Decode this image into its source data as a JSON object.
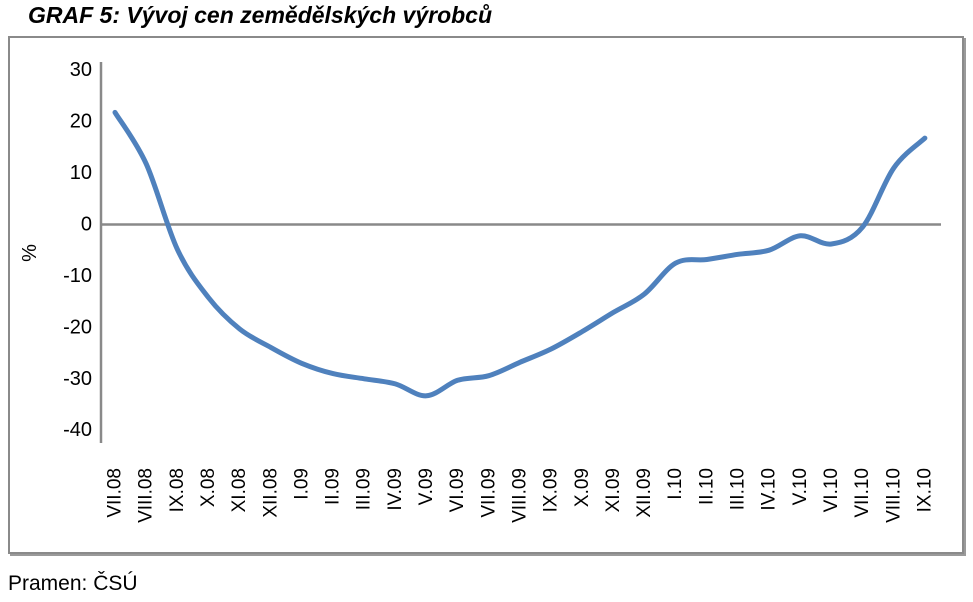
{
  "page": {
    "title": "GRAF 5: Vývoj cen zemědělských výrobců",
    "source": "Pramen: ČSÚ"
  },
  "chart_data": {
    "type": "line",
    "title": "GRAF 5: Vývoj cen zemědělských výrobců",
    "xlabel": "",
    "ylabel": "%",
    "ylim": [
      -40,
      30
    ],
    "yticks": [
      30,
      20,
      10,
      0,
      -10,
      -20,
      -30,
      -40
    ],
    "grid": "zero-line-only",
    "legend": "none",
    "smoothed_line": true,
    "line_color": "#4F81BD",
    "axis_color": "#898989",
    "categories": [
      "VII.08",
      "VIII.08",
      "IX.08",
      "X.08",
      "XI.08",
      "XII.08",
      "I.09",
      "II.09",
      "III.09",
      "IV.09",
      "V.09",
      "VI.09",
      "VII.09",
      "VIII.09",
      "IX.09",
      "X.09",
      "XI.09",
      "XII.09",
      "I.10",
      "II.10",
      "III.10",
      "IV.10",
      "V.10",
      "VI.10",
      "VII.10",
      "VIII.10",
      "IX.10"
    ],
    "values": [
      21.8,
      11.8,
      -4.8,
      -14.2,
      -20.3,
      -23.9,
      -27.0,
      -29.0,
      -30.0,
      -31.0,
      -33.3,
      -30.3,
      -29.4,
      -26.8,
      -24.2,
      -20.8,
      -17.1,
      -13.5,
      -7.5,
      -6.8,
      -5.8,
      -5.0,
      -2.2,
      -3.8,
      -0.5,
      11.0,
      16.8
    ],
    "source": "Pramen: ČSÚ"
  }
}
